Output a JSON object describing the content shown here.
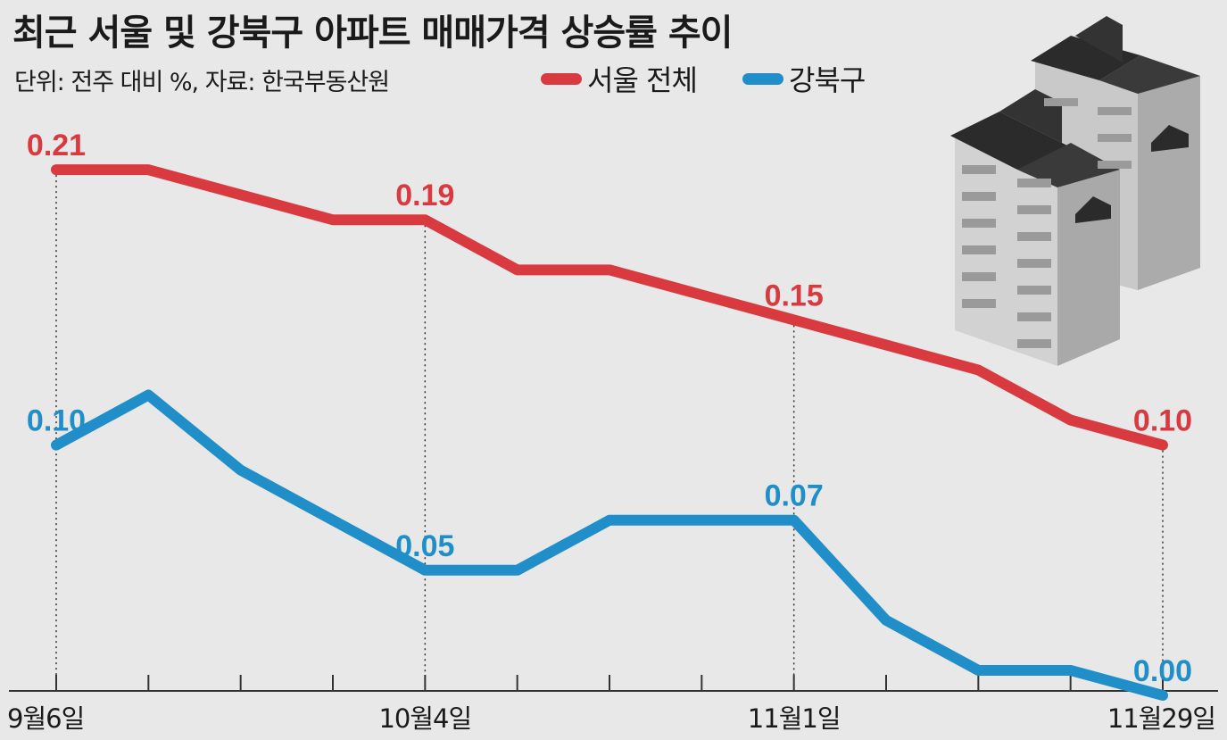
{
  "chart_data": {
    "type": "line",
    "title": "최근 서울 및 강북구 아파트 매매가격 상승률 추이",
    "subtitle": "단위: 전주 대비 %, 자료: 한국부동산원",
    "x_tick_labels": [
      "9월6일",
      "10월4일",
      "11월1일",
      "11월29일"
    ],
    "x_tick_label_indices": [
      0,
      4,
      8,
      12
    ],
    "x_count": 13,
    "ylim": [
      0,
      0.25
    ],
    "grid": false,
    "legend_position": "top",
    "series": [
      {
        "name": "서울 전체",
        "color": "#d93a3f",
        "values": [
          0.21,
          0.21,
          0.2,
          0.19,
          0.19,
          0.17,
          0.17,
          0.16,
          0.15,
          0.14,
          0.13,
          0.11,
          0.1
        ],
        "labels": [
          {
            "index": 0,
            "text": "0.21"
          },
          {
            "index": 4,
            "text": "0.19"
          },
          {
            "index": 8,
            "text": "0.15"
          },
          {
            "index": 12,
            "text": "0.10"
          }
        ]
      },
      {
        "name": "강북구",
        "color": "#1f8ec9",
        "values": [
          0.1,
          0.12,
          0.09,
          0.07,
          0.05,
          0.05,
          0.07,
          0.07,
          0.07,
          0.03,
          0.01,
          0.01,
          0.0
        ],
        "labels": [
          {
            "index": 0,
            "text": "0.10"
          },
          {
            "index": 4,
            "text": "0.05"
          },
          {
            "index": 8,
            "text": "0.07"
          },
          {
            "index": 12,
            "text": "0.00"
          }
        ]
      }
    ]
  }
}
